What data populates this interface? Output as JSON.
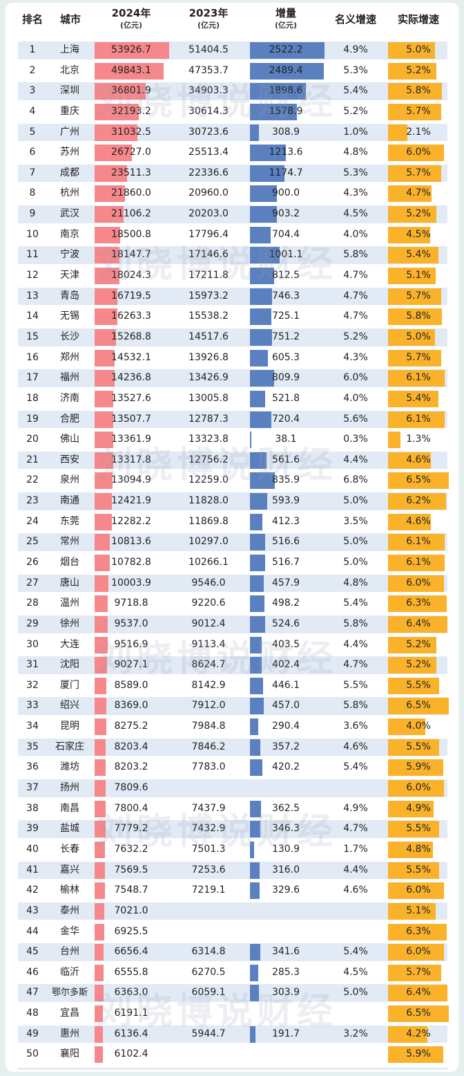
{
  "header": {
    "rank": "排名",
    "city": "城市",
    "gdp2024": "2024年",
    "gdp2024_unit": "(亿元)",
    "gdp2023": "2023年",
    "gdp2023_unit": "(亿元)",
    "increase": "增量",
    "increase_unit": "(亿元)",
    "nominal": "名义增速",
    "real": "实际增速"
  },
  "watermark": "刘晓博说财经",
  "colors": {
    "gdp2024_bar": "#f6878b",
    "increase_bar": "#5b80c0",
    "real_bar": "#f9b22a",
    "alt_row": "#e1eaf5"
  },
  "chart_data": {
    "type": "table",
    "columns": [
      "排名",
      "城市",
      "2024年(亿元)",
      "2023年(亿元)",
      "增量(亿元)",
      "名义增速",
      "实际增速"
    ],
    "rows": [
      [
        "1",
        "上海",
        "53926.7",
        "51404.5",
        "2522.2",
        "4.9%",
        "5.0%"
      ],
      [
        "2",
        "北京",
        "49843.1",
        "47353.7",
        "2489.4",
        "5.3%",
        "5.2%"
      ],
      [
        "3",
        "深圳",
        "36801.9",
        "34903.3",
        "1898.6",
        "5.4%",
        "5.8%"
      ],
      [
        "4",
        "重庆",
        "32193.2",
        "30614.3",
        "1578.9",
        "5.2%",
        "5.7%"
      ],
      [
        "5",
        "广州",
        "31032.5",
        "30723.6",
        "308.9",
        "1.0%",
        "2.1%"
      ],
      [
        "6",
        "苏州",
        "26727.0",
        "25513.4",
        "1213.6",
        "4.8%",
        "6.0%"
      ],
      [
        "7",
        "成都",
        "23511.3",
        "22336.6",
        "1174.7",
        "5.3%",
        "5.7%"
      ],
      [
        "8",
        "杭州",
        "21860.0",
        "20960.0",
        "900.0",
        "4.3%",
        "4.7%"
      ],
      [
        "9",
        "武汉",
        "21106.2",
        "20203.0",
        "903.2",
        "4.5%",
        "5.2%"
      ],
      [
        "10",
        "南京",
        "18500.8",
        "17796.4",
        "704.4",
        "4.0%",
        "4.5%"
      ],
      [
        "11",
        "宁波",
        "18147.7",
        "17146.6",
        "1001.1",
        "5.8%",
        "5.4%"
      ],
      [
        "12",
        "天津",
        "18024.3",
        "17211.8",
        "812.5",
        "4.7%",
        "5.1%"
      ],
      [
        "13",
        "青岛",
        "16719.5",
        "15973.2",
        "746.3",
        "4.7%",
        "5.7%"
      ],
      [
        "14",
        "无锡",
        "16263.3",
        "15538.2",
        "725.1",
        "4.7%",
        "5.8%"
      ],
      [
        "15",
        "长沙",
        "15268.8",
        "14517.6",
        "751.2",
        "5.2%",
        "5.0%"
      ],
      [
        "16",
        "郑州",
        "14532.1",
        "13926.8",
        "605.3",
        "4.3%",
        "5.7%"
      ],
      [
        "17",
        "福州",
        "14236.8",
        "13426.9",
        "809.9",
        "6.0%",
        "6.1%"
      ],
      [
        "18",
        "济南",
        "13527.6",
        "13005.8",
        "521.8",
        "4.0%",
        "5.4%"
      ],
      [
        "19",
        "合肥",
        "13507.7",
        "12787.3",
        "720.4",
        "5.6%",
        "6.1%"
      ],
      [
        "20",
        "佛山",
        "13361.9",
        "13323.8",
        "38.1",
        "0.3%",
        "1.3%"
      ],
      [
        "21",
        "西安",
        "13317.8",
        "12756.2",
        "561.6",
        "4.4%",
        "4.6%"
      ],
      [
        "22",
        "泉州",
        "13094.9",
        "12259.0",
        "835.9",
        "6.8%",
        "6.5%"
      ],
      [
        "23",
        "南通",
        "12421.9",
        "11828.0",
        "593.9",
        "5.0%",
        "6.2%"
      ],
      [
        "24",
        "东莞",
        "12282.2",
        "11869.8",
        "412.3",
        "3.5%",
        "4.6%"
      ],
      [
        "25",
        "常州",
        "10813.6",
        "10297.0",
        "516.6",
        "5.0%",
        "6.1%"
      ],
      [
        "26",
        "烟台",
        "10782.8",
        "10266.1",
        "516.7",
        "5.0%",
        "6.1%"
      ],
      [
        "27",
        "唐山",
        "10003.9",
        "9546.0",
        "457.9",
        "4.8%",
        "6.0%"
      ],
      [
        "28",
        "温州",
        "9718.8",
        "9220.6",
        "498.2",
        "5.4%",
        "6.3%"
      ],
      [
        "29",
        "徐州",
        "9537.0",
        "9012.4",
        "524.6",
        "5.8%",
        "6.4%"
      ],
      [
        "30",
        "大连",
        "9516.9",
        "9113.4",
        "403.5",
        "4.4%",
        "5.2%"
      ],
      [
        "31",
        "沈阳",
        "9027.1",
        "8624.7",
        "402.4",
        "4.7%",
        "5.2%"
      ],
      [
        "32",
        "厦门",
        "8589.0",
        "8142.9",
        "446.1",
        "5.5%",
        "5.5%"
      ],
      [
        "33",
        "绍兴",
        "8369.0",
        "7912.0",
        "457.0",
        "5.8%",
        "6.5%"
      ],
      [
        "34",
        "昆明",
        "8275.2",
        "7984.8",
        "290.4",
        "3.6%",
        "4.0%"
      ],
      [
        "35",
        "石家庄",
        "8203.4",
        "7846.2",
        "357.2",
        "4.6%",
        "5.5%"
      ],
      [
        "36",
        "潍坊",
        "8203.2",
        "7783.0",
        "420.2",
        "5.4%",
        "5.9%"
      ],
      [
        "37",
        "扬州",
        "7809.6",
        "",
        "",
        "",
        "6.0%"
      ],
      [
        "38",
        "南昌",
        "7800.4",
        "7437.9",
        "362.5",
        "4.9%",
        "4.9%"
      ],
      [
        "39",
        "盐城",
        "7779.2",
        "7432.9",
        "346.3",
        "4.7%",
        "5.5%"
      ],
      [
        "40",
        "长春",
        "7632.2",
        "7501.3",
        "130.9",
        "1.7%",
        "4.8%"
      ],
      [
        "41",
        "嘉兴",
        "7569.5",
        "7253.6",
        "316.0",
        "4.4%",
        "5.5%"
      ],
      [
        "42",
        "榆林",
        "7548.7",
        "7219.1",
        "329.6",
        "4.6%",
        "6.0%"
      ],
      [
        "43",
        "泰州",
        "7021.0",
        "",
        "",
        "",
        "5.1%"
      ],
      [
        "44",
        "金华",
        "6925.5",
        "",
        "",
        "",
        "6.3%"
      ],
      [
        "45",
        "台州",
        "6656.4",
        "6314.8",
        "341.6",
        "5.4%",
        "6.0%"
      ],
      [
        "46",
        "临沂",
        "6555.8",
        "6270.5",
        "285.3",
        "4.5%",
        "5.7%"
      ],
      [
        "47",
        "鄂尔多斯",
        "6363.0",
        "6059.1",
        "303.9",
        "5.0%",
        "6.4%"
      ],
      [
        "48",
        "宜昌",
        "6191.1",
        "",
        "",
        "",
        "6.5%"
      ],
      [
        "49",
        "惠州",
        "6136.4",
        "5944.7",
        "191.7",
        "3.2%",
        "4.2%"
      ],
      [
        "50",
        "襄阳",
        "6102.4",
        "",
        "",
        "",
        "5.9%"
      ]
    ]
  }
}
